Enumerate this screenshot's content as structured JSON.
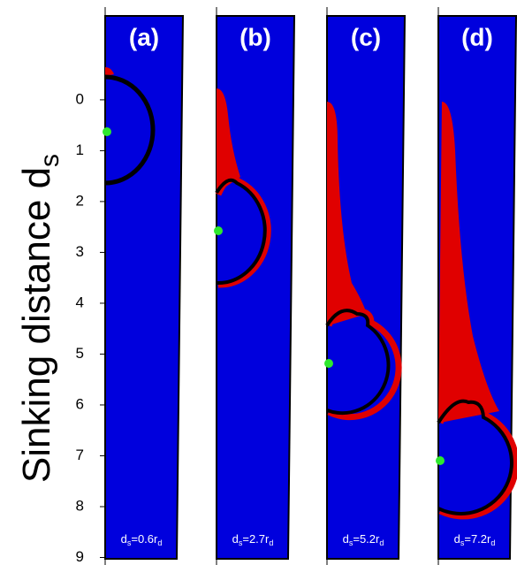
{
  "figure": {
    "y_label": {
      "text": "Sinking distance d",
      "sub": "s"
    },
    "ylim": [
      -1.65,
      9
    ],
    "yticks": [
      0,
      1,
      2,
      3,
      4,
      5,
      6,
      7,
      8,
      9
    ],
    "panels": [
      {
        "label": "(a)",
        "caption": {
          "main": "d",
          "sub": "s",
          "rest": "=0.6r",
          "sub2": "d"
        }
      },
      {
        "label": "(b)",
        "caption": {
          "main": "d",
          "sub": "s",
          "rest": "=2.7r",
          "sub2": "d"
        }
      },
      {
        "label": "(c)",
        "caption": {
          "main": "d",
          "sub": "s",
          "rest": "=5.2r",
          "sub2": "d"
        }
      },
      {
        "label": "(d)",
        "caption": {
          "main": "d",
          "sub": "s",
          "rest": "=7.2r",
          "sub2": "d"
        }
      }
    ]
  }
}
